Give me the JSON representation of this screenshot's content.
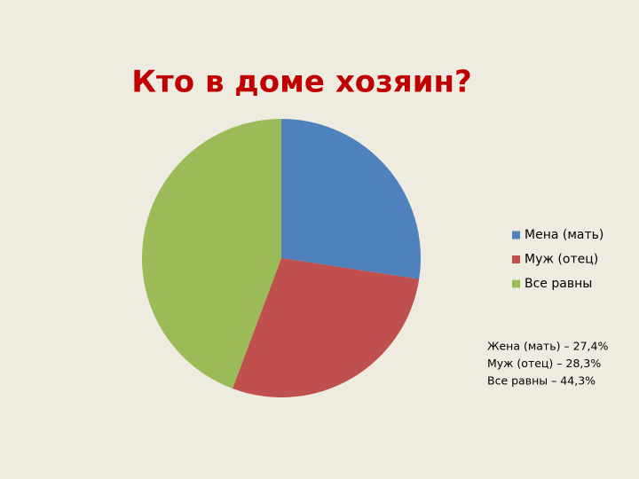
{
  "chart_data": {
    "type": "pie",
    "title": "Кто в доме хозяин?",
    "categories": [
      "Мена (мать)",
      "Муж (отец)",
      "Все равны"
    ],
    "values": [
      27.4,
      28.3,
      44.3
    ],
    "colors": [
      "#4f81bd",
      "#c0504d",
      "#9bbb59"
    ],
    "legend": "right",
    "annotations": [
      "Жена (мать) – 27,4%",
      "Муж (отец) – 28,3%",
      "Все равны – 44,3%"
    ]
  }
}
